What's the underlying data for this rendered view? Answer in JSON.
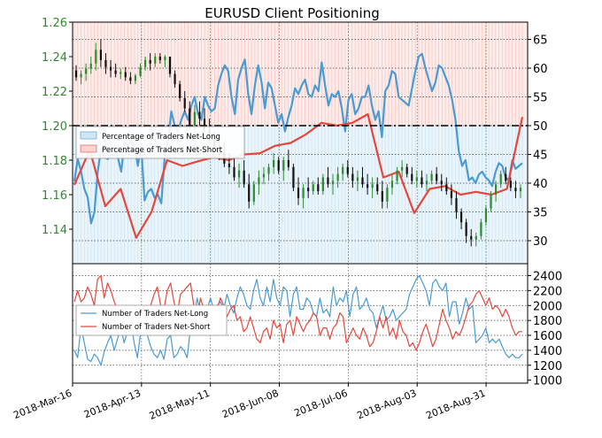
{
  "chart_data": [
    {
      "panel": "top",
      "type": "line",
      "title": "EURUSD Client Positioning",
      "x_tick_labels": [
        "2018-Mar-16",
        "2018-Apr-13",
        "2018-May-11",
        "2018-Jun-08",
        "2018-Jul-06",
        "2018-Aug-03",
        "2018-Aug-31"
      ],
      "left_axis": {
        "ticks": [
          "1.14",
          "1.16",
          "1.18",
          "1.20",
          "1.22",
          "1.24",
          "1.26"
        ],
        "ylim": [
          1.12,
          1.26
        ],
        "color": "#2e8b2e"
      },
      "right_axis": {
        "ticks": [
          "30",
          "35",
          "40",
          "45",
          "50",
          "55",
          "60",
          "65"
        ],
        "ylim": [
          26,
          68
        ]
      },
      "threshold": 50,
      "legend": {
        "placement": "center-left",
        "entries": [
          "Percentage of Traders Net-Long",
          "Percentage of Traders Net-Short"
        ]
      },
      "series": [
        {
          "name": "Percentage of Traders Net-Long",
          "color": "#4a9ad4",
          "values": [
            40.3,
            44.2,
            42.0,
            39.0,
            37.5,
            33.0,
            35.0,
            42.0,
            46.0,
            44.5,
            44.2,
            45.0,
            44.8,
            44.5,
            42.0,
            47.0,
            46.5,
            47.5,
            46.5,
            43.0,
            46.5,
            37.0,
            38.5,
            39.0,
            37.5,
            38.0,
            36.5,
            44.5,
            47.2,
            52.5,
            50.0,
            49.0,
            51.0,
            52.5,
            51.0,
            53.5,
            55.0,
            52.0,
            51.0,
            55.0,
            53.5,
            52.5,
            53.0,
            57.0,
            59.0,
            60.5,
            59.5,
            55.0,
            52.0,
            58.0,
            60.0,
            61.5,
            55.5,
            52.0,
            57.0,
            60.5,
            57.5,
            53.0,
            57.5,
            56.5,
            53.5,
            50.5,
            52.0,
            49.0,
            51.5,
            53.5,
            56.5,
            55.5,
            57.0,
            58.0,
            55.5,
            55.0,
            57.0,
            56.0,
            61.0,
            57.0,
            53.5,
            55.5,
            55.0,
            56.0,
            53.0,
            49.0,
            54.5,
            55.5,
            52.0,
            53.0,
            55.0,
            55.0,
            57.0,
            53.5,
            51.0,
            52.5,
            48.0,
            56.0,
            57.0,
            59.5,
            59.0,
            55.0,
            54.5,
            54.0,
            53.5,
            56.5,
            59.5,
            62.0,
            62.5,
            60.0,
            58.0,
            56.0,
            57.5,
            60.5,
            60.0,
            58.5,
            57.0,
            54.5,
            51.0,
            45.5,
            43.0,
            44.0,
            40.5,
            41.0,
            40.0,
            41.5,
            42.0,
            41.0,
            40.5,
            39.5,
            42.0,
            43.5,
            43.0,
            41.0,
            40.5,
            44.0,
            42.5,
            43.0,
            43.5
          ]
        },
        {
          "name": "Percentage of Traders Net-Short",
          "color": "#e8463c",
          "values": [
            39.7,
            45.8,
            36.0,
            39.0,
            30.5,
            35.0,
            44.0,
            43.0,
            43.8,
            44.5,
            44.0,
            45.0,
            45.2,
            46.5,
            47.0,
            48.5,
            50.5,
            50.0,
            50.5,
            52.0,
            41.0,
            42.0,
            34.8,
            39.0,
            39.5,
            38.0,
            38.5,
            38.0,
            39.0,
            51.5
          ]
        }
      ]
    },
    {
      "panel": "bottom",
      "type": "line",
      "right_axis": {
        "ticks": [
          "1000",
          "1200",
          "1400",
          "1600",
          "1800",
          "2000",
          "2200",
          "2400"
        ],
        "ylim": [
          960,
          2560
        ]
      },
      "legend": {
        "placement": "center-left",
        "entries": [
          "Number of Traders Net-Long",
          "Number of Traders Net-Short"
        ]
      },
      "series": [
        {
          "name": "Number of Traders Net-Long",
          "color": "#4a9ad4",
          "values": [
            1400,
            1300,
            1720,
            1500,
            1280,
            1250,
            1350,
            1300,
            1200,
            1380,
            1500,
            1600,
            1400,
            1550,
            1700,
            1500,
            1650,
            1800,
            1500,
            1300,
            1650,
            1700,
            1600,
            1450,
            1350,
            1300,
            1400,
            1280,
            1550,
            1600,
            1300,
            1350,
            1450,
            1400,
            1300,
            1700,
            1800,
            2100,
            1900,
            1800,
            1950,
            2100,
            1950,
            2000,
            2050,
            1950,
            2150,
            2000,
            1900,
            2100,
            2250,
            2150,
            2000,
            1950,
            2200,
            2350,
            2100,
            2000,
            2250,
            2050,
            2350,
            2100,
            2000,
            2250,
            2200,
            1850,
            2150,
            2250,
            1950,
            1950,
            2100,
            2050,
            1900,
            1850,
            2100,
            1900,
            1950,
            1850,
            2250,
            2000,
            2100,
            2050,
            2200,
            1850,
            2150,
            2250,
            1950,
            2000,
            2100,
            1950,
            1900,
            1700,
            1850,
            2000,
            1800,
            1850,
            1950,
            1800,
            1850,
            1900,
            1950,
            2150,
            2250,
            2350,
            2400,
            2300,
            2200,
            2000,
            2300,
            2350,
            2250,
            2200,
            2300,
            1850,
            2050,
            2050,
            1750,
            1900,
            2100,
            1950,
            2000,
            1500,
            1550,
            1600,
            1700,
            1500,
            1550,
            1500,
            1550,
            1450,
            1350,
            1300,
            1350,
            1300,
            1300,
            1350
          ]
        },
        {
          "name": "Number of Traders Net-Short",
          "color": "#e8463c",
          "values": [
            2050,
            2200,
            2050,
            2100,
            2250,
            2150,
            2000,
            2350,
            2400,
            2100,
            2300,
            2200,
            2050,
            1950,
            1800,
            1700,
            1850,
            1900,
            1850,
            1700,
            1750,
            1600,
            1850,
            2000,
            2150,
            2250,
            2000,
            1950,
            2200,
            2300,
            2050,
            1900,
            2150,
            2200,
            2250,
            2300,
            2000,
            1800,
            2100,
            1950,
            2000,
            1900,
            1850,
            1950,
            2100,
            2000,
            1850,
            1950,
            2000,
            1800,
            1850,
            1650,
            1700,
            1850,
            1700,
            1550,
            1500,
            1650,
            1700,
            1550,
            1800,
            1700,
            1750,
            1500,
            1750,
            1800,
            1600,
            1850,
            1750,
            1650,
            1750,
            1800,
            1900,
            1850,
            1600,
            1700,
            1700,
            1550,
            1700,
            1750,
            1900,
            1850,
            1500,
            1600,
            1700,
            1600,
            1550,
            1700,
            1600,
            1450,
            1500,
            1650,
            1850,
            1700,
            1850,
            1600,
            1700,
            1550,
            1800,
            1650,
            1600,
            1450,
            1500,
            1400,
            1500,
            1650,
            1750,
            1600,
            1450,
            1550,
            1750,
            1950,
            1800,
            1700,
            1550,
            1650,
            1600,
            1700,
            1850,
            2000,
            2050,
            2150,
            2200,
            2100,
            2000,
            2100,
            1950,
            2000,
            1950,
            1850,
            1950,
            1850,
            1700,
            1600,
            1650,
            1650
          ]
        }
      ]
    }
  ],
  "price_ohlc": [
    [
      1.232,
      1.235,
      1.226,
      1.228
    ],
    [
      1.228,
      1.232,
      1.224,
      1.23
    ],
    [
      1.23,
      1.236,
      1.226,
      1.233
    ],
    [
      1.233,
      1.24,
      1.23,
      1.236
    ],
    [
      1.236,
      1.248,
      1.232,
      1.244
    ],
    [
      1.244,
      1.25,
      1.234,
      1.238
    ],
    [
      1.238,
      1.242,
      1.23,
      1.234
    ],
    [
      1.234,
      1.238,
      1.228,
      1.232
    ],
    [
      1.232,
      1.236,
      1.228,
      1.23
    ],
    [
      1.23,
      1.233,
      1.227,
      1.231
    ],
    [
      1.231,
      1.234,
      1.226,
      1.228
    ],
    [
      1.228,
      1.231,
      1.224,
      1.226
    ],
    [
      1.226,
      1.23,
      1.224,
      1.229
    ],
    [
      1.229,
      1.236,
      1.228,
      1.234
    ],
    [
      1.234,
      1.24,
      1.232,
      1.238
    ],
    [
      1.238,
      1.242,
      1.232,
      1.236
    ],
    [
      1.236,
      1.242,
      1.234,
      1.24
    ],
    [
      1.24,
      1.242,
      1.236,
      1.238
    ],
    [
      1.238,
      1.241,
      1.234,
      1.24
    ],
    [
      1.24,
      1.24,
      1.228,
      1.23
    ],
    [
      1.23,
      1.232,
      1.222,
      1.224
    ],
    [
      1.224,
      1.226,
      1.214,
      1.216
    ],
    [
      1.216,
      1.22,
      1.208,
      1.21
    ],
    [
      1.21,
      1.214,
      1.198,
      1.2
    ],
    [
      1.2,
      1.212,
      1.196,
      1.208
    ],
    [
      1.208,
      1.214,
      1.2,
      1.204
    ],
    [
      1.204,
      1.21,
      1.196,
      1.198
    ],
    [
      1.198,
      1.204,
      1.19,
      1.192
    ],
    [
      1.192,
      1.196,
      1.184,
      1.186
    ],
    [
      1.186,
      1.192,
      1.18,
      1.184
    ],
    [
      1.184,
      1.19,
      1.176,
      1.178
    ],
    [
      1.178,
      1.184,
      1.172,
      1.176
    ],
    [
      1.176,
      1.182,
      1.168,
      1.17
    ],
    [
      1.17,
      1.178,
      1.164,
      1.174
    ],
    [
      1.174,
      1.18,
      1.164,
      1.166
    ],
    [
      1.166,
      1.172,
      1.152,
      1.156
    ],
    [
      1.156,
      1.168,
      1.154,
      1.166
    ],
    [
      1.166,
      1.174,
      1.16,
      1.17
    ],
    [
      1.17,
      1.176,
      1.166,
      1.172
    ],
    [
      1.172,
      1.178,
      1.168,
      1.176
    ],
    [
      1.176,
      1.184,
      1.172,
      1.18
    ],
    [
      1.18,
      1.182,
      1.172,
      1.174
    ],
    [
      1.174,
      1.182,
      1.168,
      1.18
    ],
    [
      1.18,
      1.186,
      1.174,
      1.176
    ],
    [
      1.176,
      1.178,
      1.162,
      1.164
    ],
    [
      1.164,
      1.17,
      1.154,
      1.158
    ],
    [
      1.158,
      1.166,
      1.152,
      1.164
    ],
    [
      1.164,
      1.17,
      1.158,
      1.162
    ],
    [
      1.162,
      1.168,
      1.16,
      1.166
    ],
    [
      1.166,
      1.17,
      1.16,
      1.162
    ],
    [
      1.162,
      1.172,
      1.16,
      1.17
    ],
    [
      1.17,
      1.176,
      1.164,
      1.166
    ],
    [
      1.166,
      1.172,
      1.16,
      1.168
    ],
    [
      1.168,
      1.176,
      1.164,
      1.172
    ],
    [
      1.172,
      1.178,
      1.168,
      1.176
    ],
    [
      1.176,
      1.18,
      1.17,
      1.172
    ],
    [
      1.172,
      1.176,
      1.164,
      1.168
    ],
    [
      1.168,
      1.174,
      1.162,
      1.17
    ],
    [
      1.17,
      1.176,
      1.164,
      1.166
    ],
    [
      1.166,
      1.172,
      1.16,
      1.164
    ],
    [
      1.164,
      1.17,
      1.158,
      1.166
    ],
    [
      1.166,
      1.17,
      1.16,
      1.162
    ],
    [
      1.162,
      1.168,
      1.152,
      1.156
    ],
    [
      1.156,
      1.166,
      1.152,
      1.164
    ],
    [
      1.164,
      1.172,
      1.16,
      1.168
    ],
    [
      1.168,
      1.176,
      1.166,
      1.174
    ],
    [
      1.174,
      1.18,
      1.17,
      1.176
    ],
    [
      1.176,
      1.178,
      1.17,
      1.172
    ],
    [
      1.172,
      1.176,
      1.166,
      1.168
    ],
    [
      1.168,
      1.174,
      1.164,
      1.17
    ],
    [
      1.17,
      1.174,
      1.164,
      1.166
    ],
    [
      1.166,
      1.172,
      1.162,
      1.168
    ],
    [
      1.168,
      1.174,
      1.166,
      1.172
    ],
    [
      1.172,
      1.176,
      1.166,
      1.168
    ],
    [
      1.168,
      1.172,
      1.162,
      1.166
    ],
    [
      1.166,
      1.17,
      1.16,
      1.162
    ],
    [
      1.162,
      1.166,
      1.154,
      1.158
    ],
    [
      1.158,
      1.162,
      1.146,
      1.15
    ],
    [
      1.15,
      1.152,
      1.14,
      1.144
    ],
    [
      1.144,
      1.146,
      1.132,
      1.136
    ],
    [
      1.136,
      1.14,
      1.13,
      1.134
    ],
    [
      1.134,
      1.138,
      1.13,
      1.136
    ],
    [
      1.136,
      1.146,
      1.134,
      1.144
    ],
    [
      1.144,
      1.154,
      1.142,
      1.152
    ],
    [
      1.152,
      1.162,
      1.15,
      1.16
    ],
    [
      1.16,
      1.168,
      1.156,
      1.166
    ],
    [
      1.166,
      1.174,
      1.164,
      1.172
    ],
    [
      1.172,
      1.176,
      1.166,
      1.168
    ],
    [
      1.168,
      1.17,
      1.162,
      1.164
    ],
    [
      1.164,
      1.168,
      1.158,
      1.162
    ],
    [
      1.162,
      1.166,
      1.158,
      1.164
    ]
  ]
}
